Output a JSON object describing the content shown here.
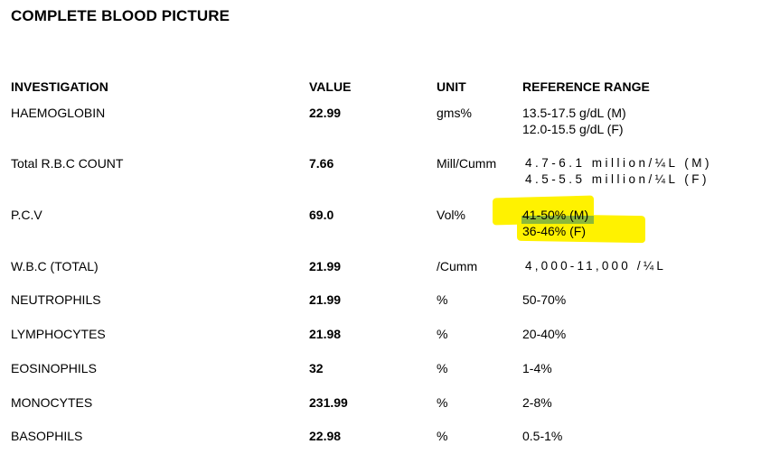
{
  "report": {
    "title": "COMPLETE BLOOD PICTURE"
  },
  "columns": {
    "investigation": "INVESTIGATION",
    "value": "VALUE",
    "unit": "UNIT",
    "reference": "REFERENCE RANGE"
  },
  "rows": [
    {
      "investigation": "HAEMOGLOBIN",
      "value": "22.99",
      "unit": "gms%",
      "ref1": "13.5-17.5 g/dL (M)",
      "ref2": "12.0-15.5 g/dL (F)"
    },
    {
      "investigation": "Total R.B.C COUNT",
      "value": "7.66",
      "unit": "Mill/Cumm",
      "ref1": "4.7-6.1 million/¼L (M)",
      "ref2": "4.5-5.5 million/¼L (F)"
    },
    {
      "investigation": "P.C.V",
      "value": "69.0",
      "unit": "Vol%",
      "ref1": "41-50% (M)",
      "ref2": "36-46% (F)"
    },
    {
      "investigation": "W.B.C (TOTAL)",
      "value": "21.99",
      "unit": "/Cumm",
      "ref1": "4,000-11,000 /¼L"
    },
    {
      "investigation": "NEUTROPHILS",
      "value": "21.99",
      "unit": "%",
      "ref1": "50-70%"
    },
    {
      "investigation": "LYMPHOCYTES",
      "value": "21.98",
      "unit": "%",
      "ref1": "20-40%"
    },
    {
      "investigation": "EOSINOPHILS",
      "value": "32",
      "unit": "%",
      "ref1": "1-4%"
    },
    {
      "investigation": "MONOCYTES",
      "value": "231.99",
      "unit": "%",
      "ref1": "2-8%"
    },
    {
      "investigation": "BASOPHILS",
      "value": "22.98",
      "unit": "%",
      "ref1": "0.5-1%"
    }
  ],
  "highlight_color": "#fff200",
  "highlight_overlap_color": "#8db83a"
}
